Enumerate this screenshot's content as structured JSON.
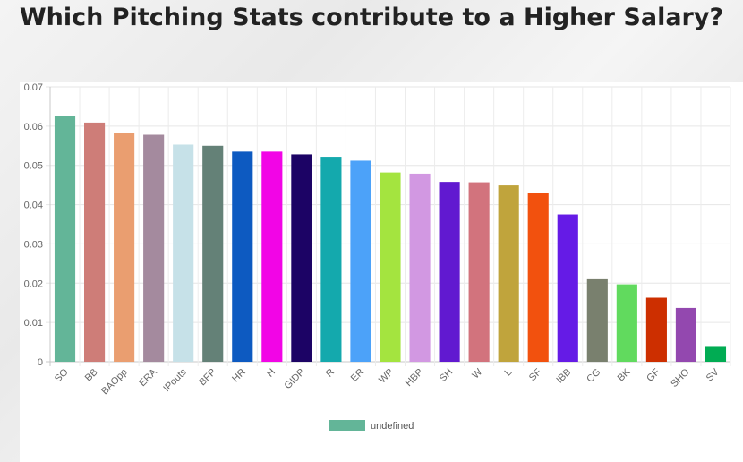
{
  "title": "Which Pitching Stats contribute to a Higher Salary?",
  "chart_data": {
    "type": "bar",
    "categories": [
      "SO",
      "BB",
      "BAOpp",
      "ERA",
      "IPouts",
      "BFP",
      "HR",
      "H",
      "GIDP",
      "R",
      "ER",
      "WP",
      "HBP",
      "SH",
      "W",
      "L",
      "SF",
      "IBB",
      "CG",
      "BK",
      "GF",
      "SHO",
      "SV"
    ],
    "values": [
      0.0626,
      0.0609,
      0.0582,
      0.0578,
      0.0553,
      0.055,
      0.0535,
      0.0535,
      0.0528,
      0.0522,
      0.0512,
      0.0482,
      0.0479,
      0.0458,
      0.0457,
      0.0449,
      0.043,
      0.0375,
      0.021,
      0.0197,
      0.0163,
      0.0137,
      0.004
    ],
    "colors": [
      "#63b598",
      "#ce7d78",
      "#ea9e70",
      "#a48a9e",
      "#c6e1e8",
      "#648177",
      "#0d5ac1",
      "#f205e6",
      "#1c0365",
      "#14a9ad",
      "#4ca2f9",
      "#a4e43f",
      "#d298e2",
      "#6119d0",
      "#d2737d",
      "#c0a43c",
      "#f2510e",
      "#651be6",
      "#79806e",
      "#61da5e",
      "#cd2f00",
      "#9348af",
      "#01ac53"
    ],
    "yticks": [
      "0",
      "0.01",
      "0.02",
      "0.03",
      "0.04",
      "0.05",
      "0.06",
      "0.07"
    ],
    "ylim": [
      0,
      0.07
    ],
    "grid": true,
    "legend": {
      "position": "bottom",
      "label": "undefined",
      "color": "#63b598"
    }
  }
}
